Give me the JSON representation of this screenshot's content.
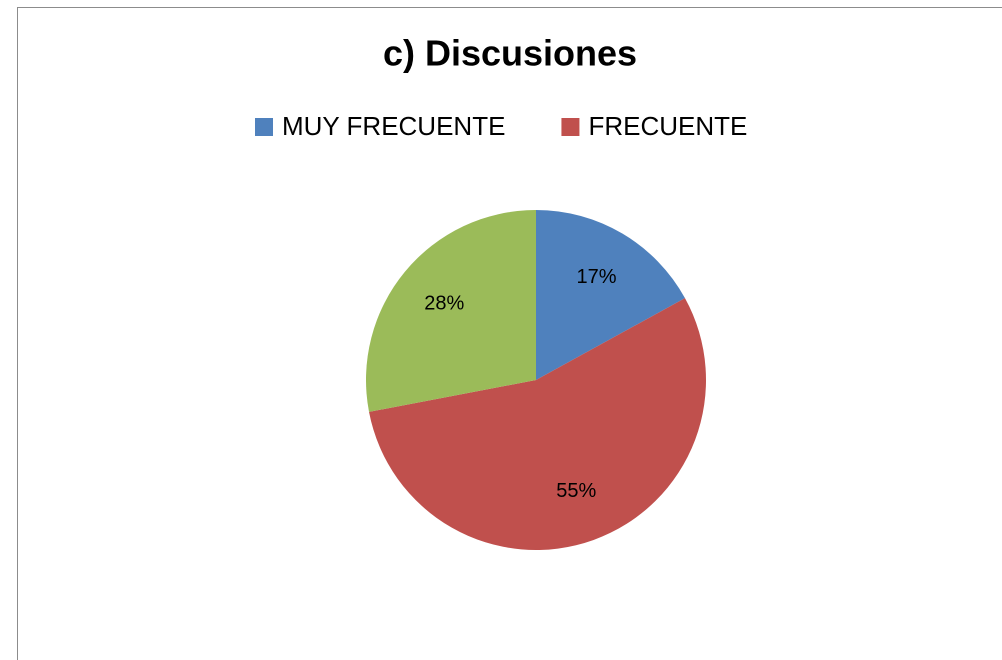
{
  "chart_data": {
    "type": "pie",
    "title": "c) Discusiones",
    "categories": [
      "MUY FRECUENTE",
      "FRECUENTE",
      null
    ],
    "values": [
      17,
      55,
      28
    ],
    "value_labels": [
      "17%",
      "55%",
      "28%"
    ],
    "colors": [
      "#4f81bd",
      "#c0504d",
      "#9bbb59"
    ],
    "legend": "top"
  }
}
